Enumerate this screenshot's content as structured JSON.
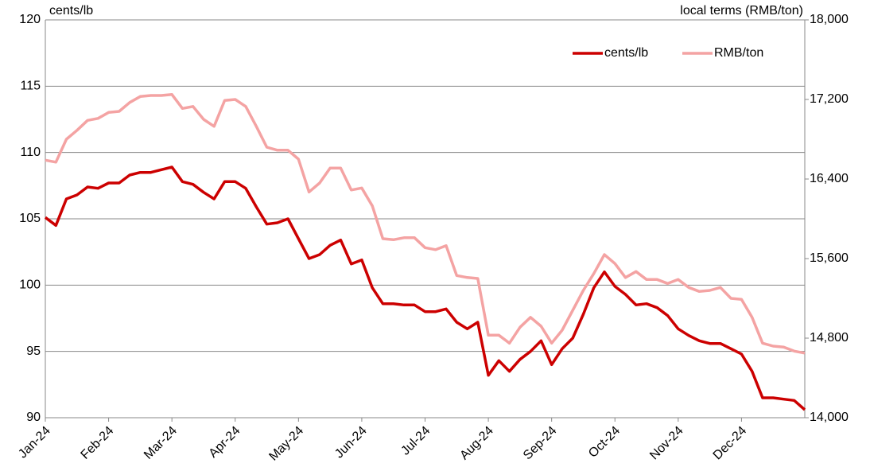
{
  "chart_data": {
    "type": "line",
    "y_label": "cents/lb",
    "y2_label": "local terms (RMB/ton)",
    "categories": [
      "Jan-24",
      null,
      null,
      null,
      null,
      null,
      "Feb-24",
      null,
      null,
      null,
      null,
      null,
      "Mar-24",
      null,
      null,
      null,
      null,
      null,
      "Apr-24",
      null,
      null,
      null,
      null,
      null,
      "May-24",
      null,
      null,
      null,
      null,
      null,
      "Jun-24",
      null,
      null,
      null,
      null,
      null,
      "Jul-24",
      null,
      null,
      null,
      null,
      null,
      "Aug-24",
      null,
      null,
      null,
      null,
      null,
      "Sep-24",
      null,
      null,
      null,
      null,
      null,
      "Oct-24",
      null,
      null,
      null,
      null,
      null,
      "Nov-24",
      null,
      null,
      null,
      null,
      null,
      "Dec-24",
      null,
      null,
      null,
      null,
      null,
      null
    ],
    "series": [
      {
        "name": "cents/lb",
        "color": "#cc0000",
        "values": [
          105.1,
          104.5,
          106.5,
          106.8,
          107.4,
          107.3,
          107.7,
          107.7,
          108.3,
          108.5,
          108.5,
          108.7,
          108.9,
          107.8,
          107.6,
          107.0,
          106.5,
          107.8,
          107.8,
          107.3,
          105.9,
          104.6,
          104.7,
          105.0,
          103.5,
          102.0,
          102.3,
          103.0,
          103.4,
          101.6,
          101.9,
          99.8,
          98.6,
          98.6,
          98.5,
          98.5,
          98.0,
          98.0,
          98.2,
          97.2,
          96.7,
          97.2,
          93.2,
          94.3,
          93.5,
          94.4,
          95.0,
          95.8,
          94.0,
          95.2,
          96.0,
          97.8,
          99.8,
          101.0,
          99.9,
          99.3,
          98.5,
          98.6,
          98.3,
          97.7,
          96.7,
          96.2,
          95.8,
          95.6,
          95.6,
          95.2,
          94.8,
          93.5,
          91.5,
          91.5,
          91.4,
          91.3,
          90.6
        ]
      },
      {
        "name": "RMB/ton",
        "color": "#f4a3a3",
        "axis": "y2",
        "values": [
          16590,
          16570,
          16800,
          16890,
          16990,
          17010,
          17070,
          17080,
          17170,
          17230,
          17240,
          17240,
          17250,
          17110,
          17130,
          17000,
          16930,
          17190,
          17200,
          17130,
          16930,
          16720,
          16690,
          16690,
          16600,
          16270,
          16360,
          16510,
          16510,
          16290,
          16310,
          16130,
          15800,
          15790,
          15810,
          15810,
          15710,
          15690,
          15730,
          15430,
          15410,
          15400,
          14830,
          14830,
          14750,
          14910,
          15010,
          14920,
          14750,
          14880,
          15080,
          15280,
          15450,
          15640,
          15550,
          15410,
          15470,
          15390,
          15390,
          15350,
          15390,
          15310,
          15270,
          15280,
          15310,
          15200,
          15190,
          15010,
          14750,
          14720,
          14710,
          14670,
          14650
        ]
      }
    ],
    "ylim": [
      90,
      120
    ],
    "yticks": [
      90,
      95,
      100,
      105,
      110,
      115,
      120
    ],
    "y2lim": [
      14000,
      18000
    ],
    "y2ticks": [
      {
        "value": 14000,
        "label": "14,000"
      },
      {
        "value": 14800,
        "label": "14,800"
      },
      {
        "value": 15600,
        "label": "15,600"
      },
      {
        "value": 16400,
        "label": "16,400"
      },
      {
        "value": 17200,
        "label": "17,200"
      },
      {
        "value": 18000,
        "label": "18,000"
      }
    ],
    "grid": true,
    "legend": "upper-right"
  }
}
